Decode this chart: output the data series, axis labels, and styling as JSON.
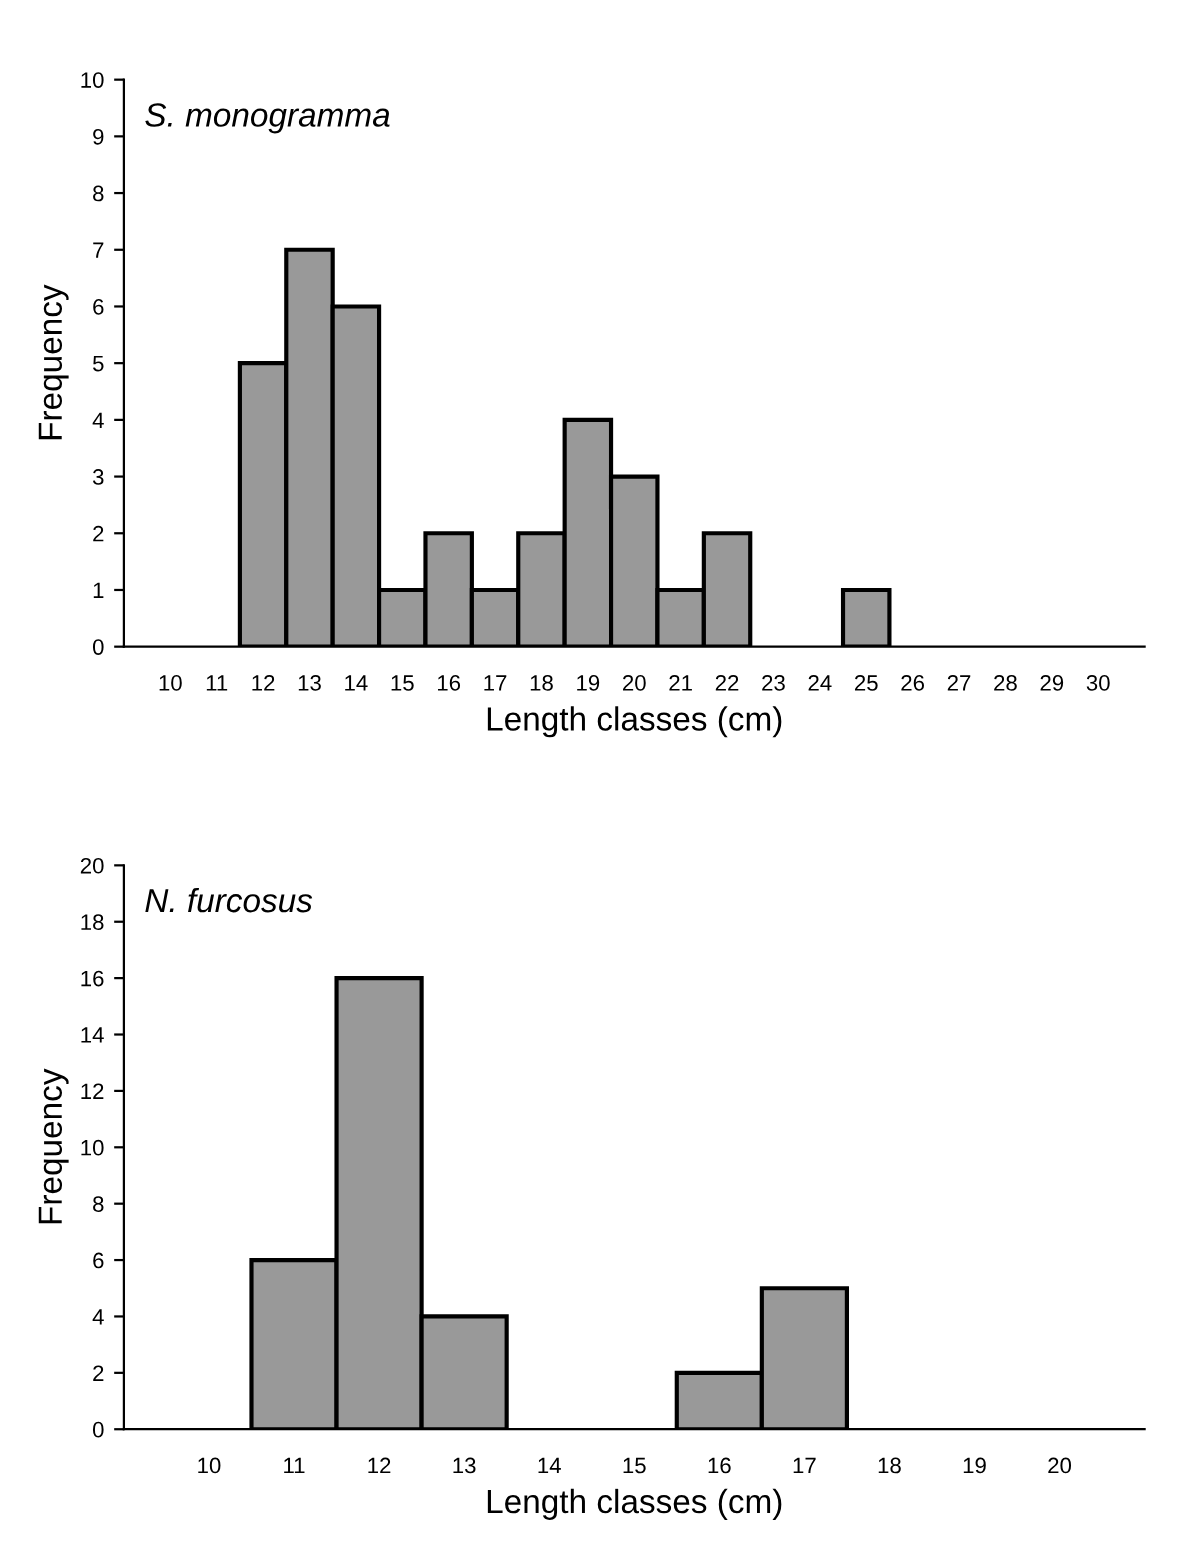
{
  "chart_data": [
    {
      "type": "bar",
      "title": "S. monogramma",
      "xlabel": "Length classes (cm)",
      "ylabel": "Frequency",
      "categories": [
        "10",
        "11",
        "12",
        "13",
        "14",
        "15",
        "16",
        "17",
        "18",
        "19",
        "20",
        "21",
        "22",
        "23",
        "24",
        "25",
        "26",
        "27",
        "28",
        "29",
        "30"
      ],
      "values": [
        0,
        0,
        5,
        7,
        6,
        1,
        2,
        1,
        2,
        4,
        3,
        1,
        2,
        0,
        0,
        1,
        0,
        0,
        0,
        0,
        0
      ],
      "color": "#999999",
      "ylim": [
        0,
        10
      ],
      "yticks": [
        0,
        1,
        2,
        3,
        4,
        5,
        6,
        7,
        8,
        9,
        10
      ],
      "grid": false,
      "legend": false
    },
    {
      "type": "bar",
      "title": "N. furcosus",
      "xlabel": "Length classes (cm)",
      "ylabel": "Frequency",
      "categories": [
        "10",
        "11",
        "12",
        "13",
        "14",
        "15",
        "16",
        "17",
        "18",
        "19",
        "20"
      ],
      "values": [
        0,
        6,
        16,
        4,
        0,
        0,
        2,
        5,
        0,
        0,
        0
      ],
      "color": "#999999",
      "ylim": [
        0,
        20
      ],
      "yticks": [
        0,
        2,
        4,
        6,
        8,
        10,
        12,
        14,
        16,
        18,
        20
      ],
      "grid": false,
      "legend": false
    }
  ]
}
